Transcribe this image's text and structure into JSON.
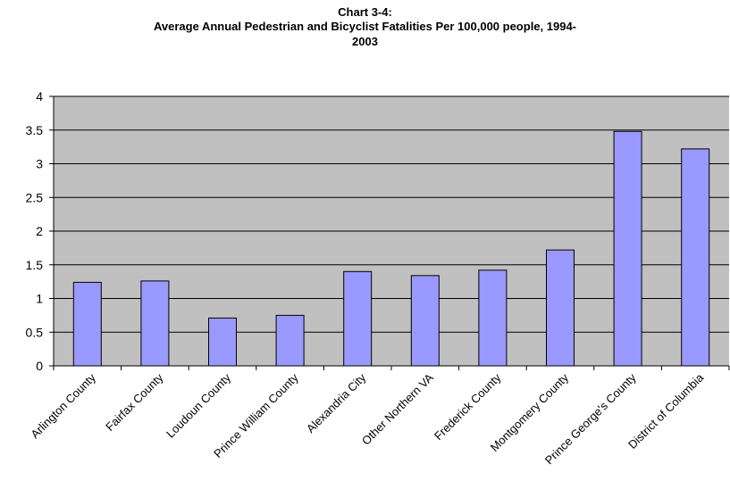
{
  "chart_data": {
    "type": "bar",
    "title_line1": "Chart 3-4:",
    "title_line2": "Average Annual Pedestrian and Bicyclist Fatalities Per 100,000 people, 1994-",
    "title_line3": "2003",
    "categories": [
      "Arlington County",
      "Fairfax County",
      "Loudoun County",
      "Prince William County",
      "Alexandria City",
      "Other Northern VA",
      "Frederick County",
      "Montgomery County",
      "Prince George's County",
      "District of Columbia"
    ],
    "values": [
      1.24,
      1.26,
      0.71,
      0.75,
      1.4,
      1.34,
      1.42,
      1.72,
      3.48,
      3.22
    ],
    "yticks": [
      "0",
      "0.5",
      "1",
      "1.5",
      "2",
      "2.5",
      "3",
      "3.5",
      "4"
    ],
    "ylim": [
      0,
      4
    ],
    "grid": true,
    "legend": "none",
    "colors": {
      "bar_fill": "#9999ff",
      "plot_bg": "#c0c0c0",
      "grid": "#000000"
    }
  }
}
